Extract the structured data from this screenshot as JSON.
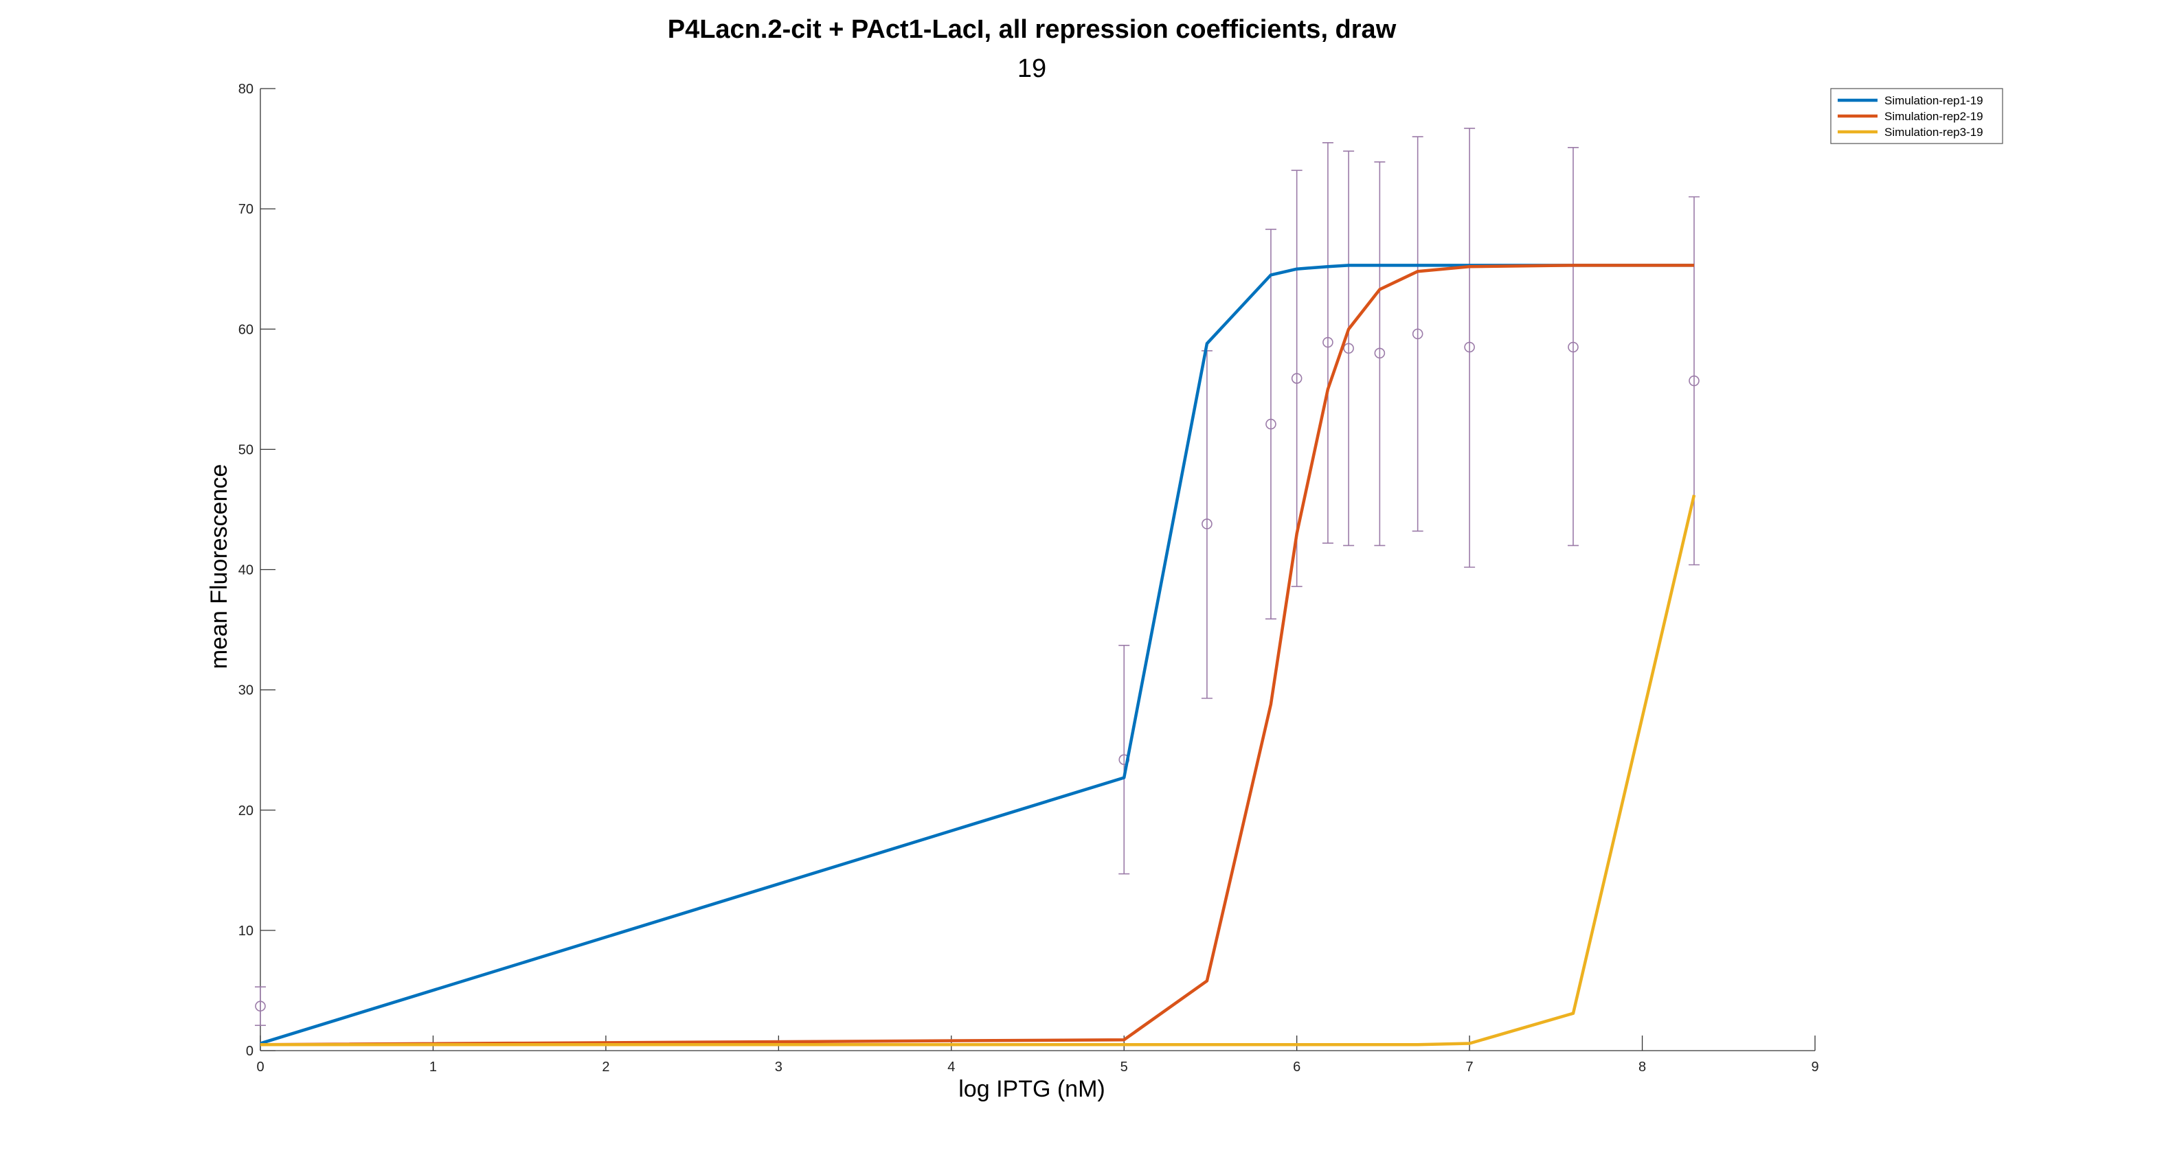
{
  "chart_data": {
    "type": "line",
    "title": "P4Lacn.2-cit + PAct1-LacI, all repression coefficients, draw",
    "subtitle": "19",
    "xlabel": "log IPTG (nM)",
    "ylabel": "mean Fluorescence",
    "xlim": [
      0,
      9
    ],
    "ylim": [
      0,
      80
    ],
    "xticks": [
      0,
      1,
      2,
      3,
      4,
      5,
      6,
      7,
      8,
      9
    ],
    "yticks": [
      0,
      10,
      20,
      30,
      40,
      50,
      60,
      70,
      80
    ],
    "grid": false,
    "legend_position": "top-right",
    "series": [
      {
        "name": "Simulation-rep1-19",
        "color": "#0072BD",
        "x": [
          0,
          5,
          5.48,
          5.85,
          6,
          6.18,
          6.3,
          6.48,
          6.7,
          7,
          7.6,
          8.3
        ],
        "y": [
          0.6,
          22.7,
          58.8,
          64.5,
          65.0,
          65.2,
          65.3,
          65.3,
          65.3,
          65.3,
          65.3,
          65.3
        ]
      },
      {
        "name": "Simulation-rep2-19",
        "color": "#D95319",
        "x": [
          0,
          5,
          5.48,
          5.85,
          6,
          6.18,
          6.3,
          6.48,
          6.7,
          7,
          7.6,
          8.3
        ],
        "y": [
          0.5,
          0.9,
          5.8,
          28.8,
          43.0,
          55.0,
          60.0,
          63.3,
          64.8,
          65.2,
          65.3,
          65.3
        ]
      },
      {
        "name": "Simulation-rep3-19",
        "color": "#EDB120",
        "x": [
          0,
          5,
          5.48,
          5.85,
          6,
          6.18,
          6.3,
          6.48,
          6.7,
          7,
          7.6,
          8.3
        ],
        "y": [
          0.5,
          0.5,
          0.5,
          0.5,
          0.5,
          0.5,
          0.5,
          0.5,
          0.5,
          0.6,
          3.1,
          46.2
        ]
      }
    ],
    "error_data": {
      "color": "#9B7BA8",
      "marker": "circle",
      "points": [
        {
          "x": 0,
          "y": 3.7,
          "low": 2.1,
          "high": 5.3
        },
        {
          "x": 5,
          "y": 24.2,
          "low": 14.7,
          "high": 33.7
        },
        {
          "x": 5.48,
          "y": 43.8,
          "low": 29.3,
          "high": 58.2
        },
        {
          "x": 5.85,
          "y": 52.1,
          "low": 35.9,
          "high": 68.3
        },
        {
          "x": 6,
          "y": 55.9,
          "low": 38.6,
          "high": 73.2
        },
        {
          "x": 6.18,
          "y": 58.9,
          "low": 42.2,
          "high": 75.5
        },
        {
          "x": 6.3,
          "y": 58.4,
          "low": 42.0,
          "high": 74.8
        },
        {
          "x": 6.48,
          "y": 58.0,
          "low": 42.0,
          "high": 73.9
        },
        {
          "x": 6.7,
          "y": 59.6,
          "low": 43.2,
          "high": 76.0
        },
        {
          "x": 7,
          "y": 58.5,
          "low": 40.2,
          "high": 76.7
        },
        {
          "x": 7.6,
          "y": 58.5,
          "low": 42.0,
          "high": 75.1
        },
        {
          "x": 8.3,
          "y": 55.7,
          "low": 40.4,
          "high": 71.0
        }
      ]
    }
  }
}
